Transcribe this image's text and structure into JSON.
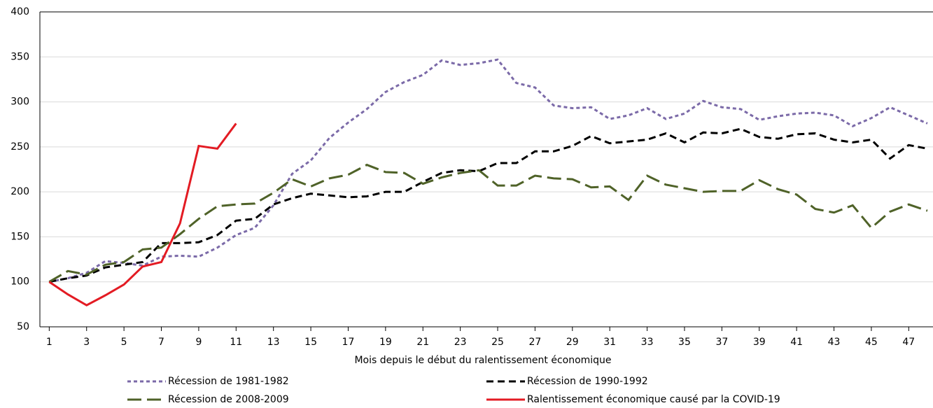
{
  "chart_data": {
    "type": "line",
    "x_label": "Mois depuis le début du ralentissement économique",
    "x": [
      1,
      2,
      3,
      4,
      5,
      6,
      7,
      8,
      9,
      10,
      11,
      12,
      13,
      14,
      15,
      16,
      17,
      18,
      19,
      20,
      21,
      22,
      23,
      24,
      25,
      26,
      27,
      28,
      29,
      30,
      31,
      32,
      33,
      34,
      35,
      36,
      37,
      38,
      39,
      40,
      41,
      42,
      43,
      44,
      45,
      46,
      47,
      48
    ],
    "xlim": [
      0.5,
      48
    ],
    "xticks": [
      1,
      3,
      5,
      7,
      9,
      11,
      13,
      15,
      17,
      19,
      21,
      23,
      25,
      27,
      29,
      31,
      33,
      35,
      37,
      39,
      41,
      43,
      45,
      47
    ],
    "ylim": [
      50,
      400
    ],
    "yticks": [
      50,
      100,
      150,
      200,
      250,
      300,
      350,
      400
    ],
    "grid": true,
    "series": [
      {
        "name": "Récession de 1981-1982",
        "color": "#7b6aa8",
        "dash": "short",
        "values": [
          100,
          104,
          110,
          123,
          121,
          118,
          128,
          129,
          128,
          138,
          152,
          160,
          185,
          220,
          235,
          260,
          277,
          292,
          311,
          322,
          330,
          346,
          341,
          343,
          347,
          321,
          316,
          296,
          293,
          294,
          281,
          285,
          293,
          281,
          287,
          301,
          294,
          292,
          280,
          284,
          287,
          288,
          285,
          273,
          282,
          294,
          285,
          276
        ]
      },
      {
        "name": "Récession de 1990-1992",
        "color": "#000000",
        "dash": "medium",
        "values": [
          100,
          104,
          107,
          116,
          119,
          122,
          143,
          143,
          144,
          152,
          168,
          170,
          186,
          193,
          198,
          196,
          194,
          195,
          200,
          200,
          211,
          221,
          224,
          223,
          232,
          232,
          245,
          245,
          251,
          262,
          254,
          256,
          258,
          265,
          255,
          266,
          265,
          270,
          261,
          259,
          264,
          265,
          258,
          255,
          258,
          237,
          252,
          248
        ]
      },
      {
        "name": "Récession de 2008-2009",
        "color": "#4f6228",
        "dash": "long",
        "values": [
          100,
          112,
          108,
          119,
          122,
          136,
          138,
          153,
          170,
          184,
          186,
          187,
          199,
          214,
          206,
          215,
          219,
          230,
          222,
          221,
          209,
          216,
          221,
          224,
          207,
          207,
          218,
          215,
          214,
          205,
          206,
          191,
          218,
          208,
          204,
          200,
          201,
          201,
          213,
          203,
          197,
          181,
          177,
          185,
          160,
          178,
          186,
          179
        ]
      },
      {
        "name": "Ralentissement économique causé par la COVID-19",
        "color": "#e31b23",
        "dash": "solid",
        "values": [
          100,
          86,
          74,
          85,
          97,
          117,
          122,
          165,
          251,
          248,
          276,
          null,
          null,
          null,
          null,
          null,
          null,
          null,
          null,
          null,
          null,
          null,
          null,
          null,
          null,
          null,
          null,
          null,
          null,
          null,
          null,
          null,
          null,
          null,
          null,
          null,
          null,
          null,
          null,
          null,
          null,
          null,
          null,
          null,
          null,
          null,
          null,
          null
        ]
      }
    ]
  }
}
